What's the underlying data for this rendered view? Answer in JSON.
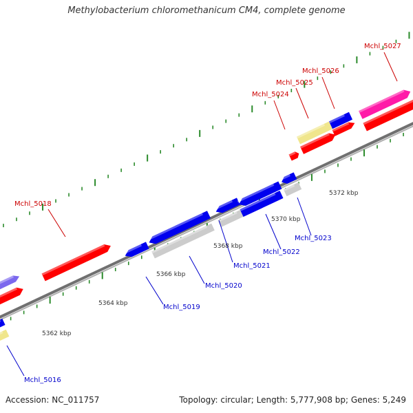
{
  "title": "Methylobacterium chloromethanicum CM4, complete genome",
  "accession": "Accession: NC_011757",
  "summary": "Topology: circular; Length: 5,777,908 bp; Genes: 5,249",
  "colors": {
    "backbone": "#8c8c8c",
    "tick": "#2a8a2a",
    "forward_label": "#cc0000",
    "reverse_label": "#0000cc",
    "cds_red": "#ff0000",
    "cds_blue": "#0000ee",
    "cds_pink": "#ff1aa8",
    "cds_khaki": "#f0e68c",
    "cds_grey": "#cccccc",
    "cds_slate": "#7b68ee"
  },
  "kbp_labels": [
    "5362 kbp",
    "5364 kbp",
    "5366 kbp",
    "5368 kbp",
    "5370 kbp",
    "5372 kbp"
  ],
  "genes": [
    {
      "name": "Mchl_5016",
      "strand": "reverse"
    },
    {
      "name": "Mchl_5018",
      "strand": "forward"
    },
    {
      "name": "Mchl_5019",
      "strand": "reverse"
    },
    {
      "name": "Mchl_5020",
      "strand": "reverse"
    },
    {
      "name": "Mchl_5021",
      "strand": "reverse"
    },
    {
      "name": "Mchl_5022",
      "strand": "reverse"
    },
    {
      "name": "Mchl_5023",
      "strand": "reverse"
    },
    {
      "name": "Mchl_5024",
      "strand": "forward"
    },
    {
      "name": "Mchl_5025",
      "strand": "forward"
    },
    {
      "name": "Mchl_5026",
      "strand": "forward"
    },
    {
      "name": "Mchl_5027",
      "strand": "forward"
    }
  ]
}
